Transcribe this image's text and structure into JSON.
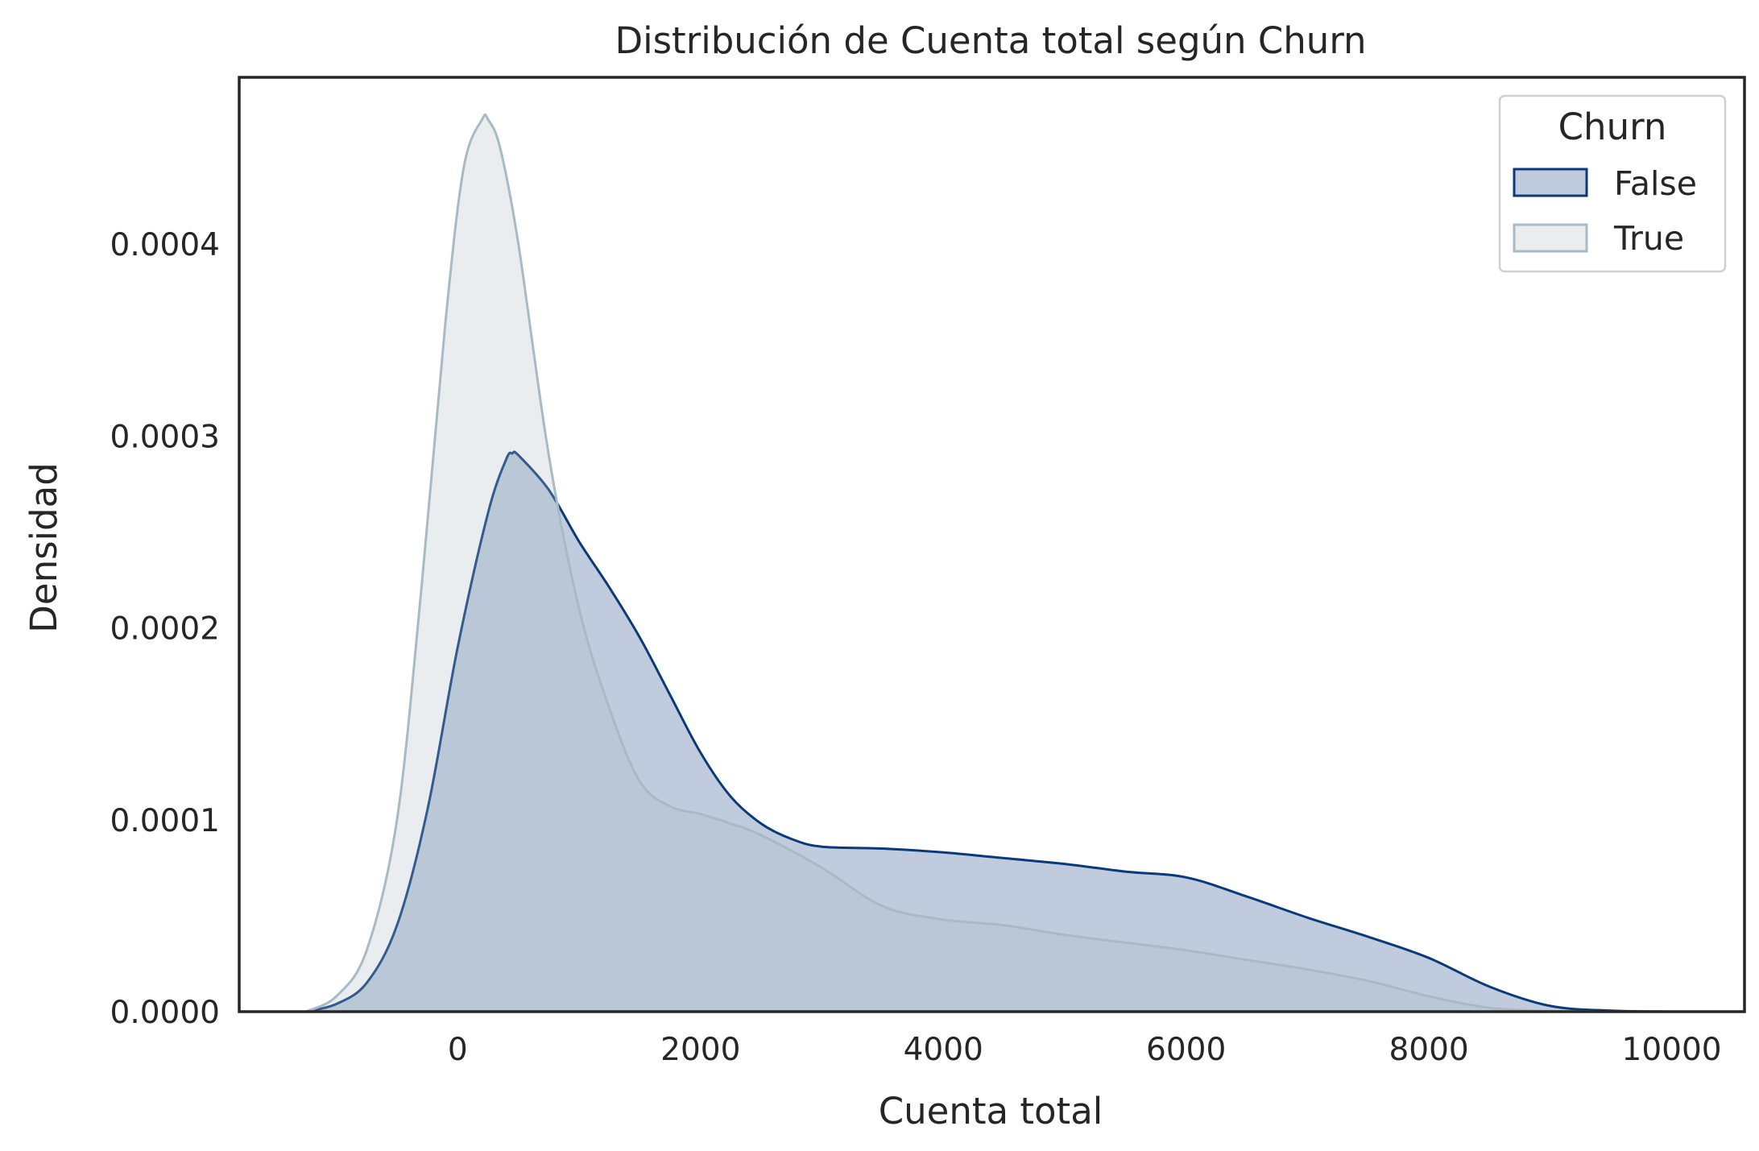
{
  "chart_data": {
    "type": "area",
    "title": "Distribución de Cuenta total según Churn",
    "xlabel": "Cuenta total",
    "ylabel": "Densidad",
    "xlim": [
      -1800,
      10600
    ],
    "ylim": [
      0,
      0.000487
    ],
    "xticks": [
      0,
      2000,
      4000,
      6000,
      8000,
      10000
    ],
    "xtick_labels": [
      "0",
      "2000",
      "4000",
      "6000",
      "8000",
      "10000"
    ],
    "yticks": [
      0,
      0.0001,
      0.0002,
      0.0003,
      0.0004
    ],
    "ytick_labels": [
      "0.0000",
      "0.0001",
      "0.0002",
      "0.0003",
      "0.0004"
    ],
    "grid": false,
    "legend": {
      "title": "Churn",
      "placement": "top-right"
    },
    "series": [
      {
        "name": "False",
        "color": "#0a3a7a",
        "fill_opacity": 0.26,
        "x": [
          -1250,
          -1000,
          -750,
          -500,
          -250,
          0,
          250,
          400,
          450,
          500,
          750,
          1000,
          1250,
          1500,
          1750,
          2000,
          2250,
          2500,
          2750,
          3000,
          3500,
          4000,
          4500,
          5000,
          5500,
          6000,
          6500,
          7000,
          7500,
          8000,
          8500,
          9000,
          9500,
          10000
        ],
        "y": [
          0.0,
          4e-06,
          1.5e-05,
          4.5e-05,
          0.000105,
          0.00019,
          0.00026,
          0.000288,
          0.000291,
          0.00029,
          0.000272,
          0.000245,
          0.000221,
          0.000195,
          0.000165,
          0.000135,
          0.000112,
          9.8e-05,
          9e-05,
          8.6e-05,
          8.5e-05,
          8.3e-05,
          8e-05,
          7.7e-05,
          7.3e-05,
          7e-05,
          6e-05,
          4.9e-05,
          3.9e-05,
          2.8e-05,
          1.3e-05,
          3e-06,
          5e-07,
          0.0
        ]
      },
      {
        "name": "True",
        "color": "#a9bac4",
        "fill_opacity": 0.26,
        "x": [
          -1250,
          -1000,
          -750,
          -500,
          -300,
          -100,
          50,
          200,
          250,
          350,
          500,
          750,
          1000,
          1250,
          1500,
          1750,
          2000,
          2250,
          2500,
          3000,
          3500,
          4000,
          4500,
          5000,
          5500,
          6000,
          6500,
          7000,
          7500,
          8000,
          8500,
          9000,
          9500
        ],
        "y": [
          0.0,
          8e-06,
          3.2e-05,
          0.0001,
          0.00022,
          0.00036,
          0.00044,
          0.000465,
          0.000465,
          0.00045,
          0.0004,
          0.00029,
          0.00021,
          0.000158,
          0.00012,
          0.000107,
          0.000103,
          9.8e-05,
          9.2e-05,
          7.5e-05,
          5.5e-05,
          4.8e-05,
          4.5e-05,
          4e-05,
          3.6e-05,
          3.2e-05,
          2.7e-05,
          2.2e-05,
          1.6e-05,
          8e-06,
          2e-06,
          3e-07,
          0.0
        ]
      }
    ]
  }
}
